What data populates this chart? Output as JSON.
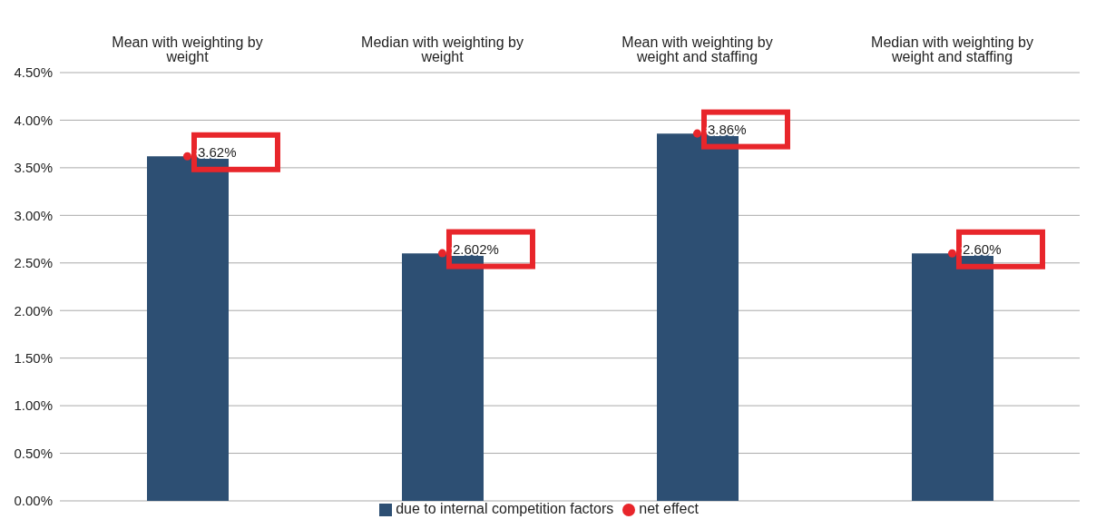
{
  "chart_data": {
    "type": "bar",
    "categories": [
      "Mean with weighting by weight",
      "Median with weighting by weight",
      "Mean with weighting by weight and staffing",
      "Median with weighting by weight and staffing"
    ],
    "series": [
      {
        "name": "due to internal competition factors",
        "color": "#2d4f73",
        "values": [
          3.62,
          2.6,
          3.86,
          2.6
        ]
      },
      {
        "name": "net effect",
        "type": "scatter",
        "color": "#e8262b",
        "values": [
          3.62,
          2.602,
          3.86,
          2.6
        ],
        "value_labels": [
          "3.62%",
          "2.602%",
          "3.86%",
          "2.60%"
        ]
      }
    ],
    "ylim": [
      0,
      4.5
    ],
    "yticks": [
      {
        "value": 0,
        "label": "0.00%"
      },
      {
        "value": 0.5,
        "label": "0.50%"
      },
      {
        "value": 1,
        "label": "1.00%"
      },
      {
        "value": 1.5,
        "label": "1.50%"
      },
      {
        "value": 2,
        "label": "2.00%"
      },
      {
        "value": 2.5,
        "label": "2.50%"
      },
      {
        "value": 3,
        "label": "3.00%"
      },
      {
        "value": 3.5,
        "label": "3.50%"
      },
      {
        "value": 4,
        "label": "4.00%"
      },
      {
        "value": 4.5,
        "label": "4.50%"
      }
    ],
    "grid": "y",
    "legend": "bottom",
    "marker": "circle"
  }
}
